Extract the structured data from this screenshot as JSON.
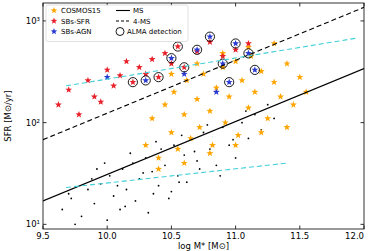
{
  "chart_data": {
    "type": "scatter",
    "x_label": "log M* [M⊙]",
    "y_label": "SFR [M⊙/yr]",
    "log": "y",
    "grid": false,
    "legend": "upper left",
    "xlim": [
      9.5,
      12.0
    ],
    "ylim": [
      9,
      1500
    ],
    "xticks": [
      9.5,
      {
        "value": 10,
        "label": "10.0"
      },
      10.5,
      {
        "value": 11,
        "label": "11.0"
      },
      11.5,
      {
        "value": 12,
        "label": "12.0"
      }
    ],
    "yticks": [
      {
        "value": 10,
        "label": "10¹"
      },
      {
        "value": 100,
        "label": "10²"
      },
      {
        "value": 1000,
        "label": "10³"
      }
    ],
    "series": [
      {
        "type": "scatter",
        "color": "#000000",
        "marker": "dot",
        "x": [
          9.65,
          9.72,
          9.8,
          9.85,
          9.9,
          9.95,
          10.0,
          10.02,
          10.05,
          10.1,
          10.12,
          10.15,
          10.2,
          10.22,
          10.25,
          10.3,
          10.32,
          10.35,
          10.4,
          10.42,
          10.45,
          10.5,
          10.52,
          10.55,
          10.6,
          10.62,
          10.65,
          10.7,
          10.72,
          10.75,
          10.8,
          10.85,
          10.9,
          10.95,
          11.0,
          11.05,
          11.1,
          11.15,
          11.2,
          11.3,
          9.75,
          9.88,
          9.98,
          10.08,
          10.18,
          10.28,
          10.38,
          10.48,
          10.58,
          10.68,
          10.78,
          10.88,
          10.98,
          11.08,
          11.25,
          9.7,
          9.92,
          10.14,
          10.36,
          10.56
        ],
        "values": [
          14,
          18,
          12,
          22,
          16,
          25,
          11,
          30,
          19,
          14,
          35,
          22,
          40,
          17,
          28,
          45,
          13,
          33,
          24,
          55,
          38,
          21,
          60,
          30,
          48,
          26,
          70,
          42,
          35,
          80,
          55,
          38,
          90,
          60,
          45,
          100,
          70,
          120,
          85,
          110,
          10,
          28,
          40,
          24,
          50,
          32,
          65,
          18,
          75,
          52,
          95,
          30,
          68,
          130,
          150,
          20,
          35,
          15,
          20,
          26
        ]
      },
      {
        "name": "COSMOS15",
        "type": "scatter",
        "color": "#ffa500",
        "marker": "star",
        "x": [
          10.3,
          10.35,
          10.4,
          10.45,
          10.5,
          10.52,
          10.55,
          10.6,
          10.62,
          10.65,
          10.7,
          10.72,
          10.75,
          10.8,
          10.82,
          10.85,
          10.9,
          10.92,
          10.95,
          11.0,
          11.02,
          11.05,
          11.1,
          11.12,
          11.15,
          11.2,
          11.25,
          11.3,
          11.35,
          11.4,
          11.45,
          11.5,
          11.55,
          10.4,
          10.6,
          10.8,
          11.0,
          11.2,
          11.4,
          10.5,
          10.7,
          10.9,
          11.1,
          11.3
        ],
        "values": [
          60,
          110,
          45,
          150,
          80,
          200,
          55,
          120,
          260,
          70,
          170,
          90,
          300,
          130,
          60,
          220,
          350,
          100,
          180,
          400,
          75,
          260,
          140,
          450,
          200,
          320,
          110,
          250,
          180,
          380,
          150,
          280,
          200,
          35,
          40,
          50,
          60,
          80,
          90,
          300,
          380,
          480,
          550,
          600
        ]
      },
      {
        "name": "SBs-SFR",
        "type": "scatter",
        "color": "#e8202a",
        "marker": "star",
        "x": [
          9.62,
          9.7,
          9.78,
          9.85,
          9.9,
          9.95,
          10.0,
          10.05,
          10.1,
          10.15,
          10.2,
          10.25,
          10.3,
          10.35,
          10.4,
          10.45,
          10.5,
          10.55,
          10.6,
          10.7,
          10.8,
          10.9,
          11.0,
          11.1
        ],
        "values": [
          150,
          210,
          120,
          260,
          180,
          160,
          330,
          230,
          290,
          400,
          250,
          350,
          300,
          420,
          280,
          480,
          380,
          560,
          350,
          500,
          620,
          450,
          520,
          600
        ]
      },
      {
        "name": "SBs-AGN",
        "type": "scatter",
        "color": "#2a3ad0",
        "marker": "star",
        "x": [
          10.0,
          10.3,
          10.5,
          10.6,
          10.7,
          10.8,
          10.9,
          10.95,
          11.0,
          11.1,
          11.15,
          10.85
        ],
        "values": [
          280,
          260,
          430,
          300,
          520,
          700,
          380,
          250,
          600,
          480,
          330,
          200
        ]
      },
      {
        "name": "MS",
        "type": "line",
        "color": "#000000",
        "line_style": "solid",
        "x": [
          9.5,
          12.0
        ],
        "values": [
          17,
          340
        ]
      },
      {
        "name": "4-MS",
        "type": "line",
        "color": "#000000",
        "line_style": "dashed",
        "x": [
          9.5,
          12.0
        ],
        "values": [
          68,
          1360
        ]
      },
      {
        "name": "ALMA detection",
        "type": "scatter",
        "color": "#000000",
        "marker": "circle-open",
        "x": [
          10.2,
          10.4,
          10.5,
          10.55,
          10.6,
          10.7,
          10.8,
          10.9,
          10.95,
          11.0,
          11.1,
          11.15,
          10.3
        ],
        "values": [
          250,
          280,
          430,
          560,
          350,
          520,
          700,
          380,
          250,
          600,
          480,
          330,
          260
        ]
      },
      {
        "type": "line",
        "color": "#40d0d8",
        "line_style": "dashed",
        "x": [
          9.68,
          11.95
        ],
        "values": [
          230,
          680
        ]
      },
      {
        "type": "line",
        "color": "#40d0d8",
        "line_style": "dashed",
        "x": [
          9.68,
          11.4
        ],
        "values": [
          23,
          40
        ]
      }
    ]
  }
}
